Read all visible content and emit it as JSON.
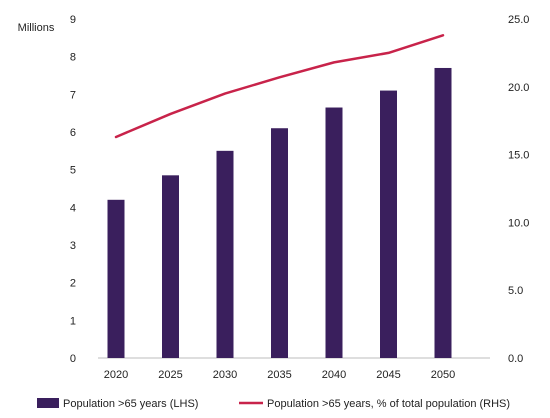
{
  "chart_data": {
    "type": "bar+line",
    "title": "",
    "y_left_label": "Millions",
    "categories": [
      "2020",
      "2025",
      "2030",
      "2035",
      "2040",
      "2045",
      "2050"
    ],
    "y_left": {
      "min": 0,
      "max": 9,
      "ticks": [
        "0",
        "1",
        "2",
        "3",
        "4",
        "5",
        "6",
        "7",
        "8",
        "9"
      ]
    },
    "y_right": {
      "min": 0,
      "max": 25,
      "ticks": [
        "0.0",
        "5.0",
        "10.0",
        "15.0",
        "20.0",
        "25.0"
      ]
    },
    "series": [
      {
        "name": "Population >65 years (LHS)",
        "type": "bar",
        "axis": "left",
        "color": "#3a1f5d",
        "values": [
          4.2,
          4.85,
          5.5,
          6.1,
          6.65,
          7.1,
          7.7
        ]
      },
      {
        "name": "Population >65 years, % of total population (RHS)",
        "type": "line",
        "axis": "right",
        "color": "#c8234a",
        "values": [
          16.3,
          18.0,
          19.5,
          20.7,
          21.8,
          22.5,
          23.8
        ]
      }
    ],
    "grid": false,
    "legend_position": "bottom"
  }
}
